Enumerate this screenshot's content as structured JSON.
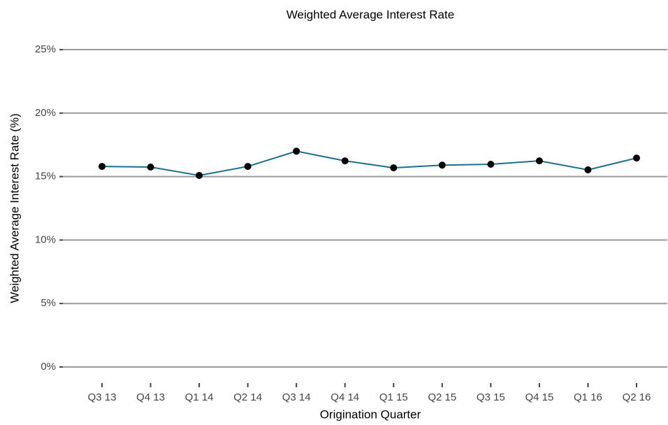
{
  "chart_data": {
    "type": "line",
    "title": "Weighted Average Interest Rate",
    "x_label": "Origination Quarter",
    "y_label": "Weighted Average Interest Rate (%)",
    "categories": [
      "Q3 13",
      "Q4 13",
      "Q1 14",
      "Q2 14",
      "Q3 14",
      "Q4 14",
      "Q1 15",
      "Q2 15",
      "Q3 15",
      "Q4 15",
      "Q1 16",
      "Q2 16"
    ],
    "series": [
      {
        "name": "Weighted Average Interest Rate",
        "color": "#1b6f8c",
        "marker_color": "#000000",
        "values": [
          15.8,
          15.75,
          15.09,
          15.8,
          17.0,
          16.24,
          15.69,
          15.9,
          15.97,
          16.24,
          15.53,
          16.46
        ]
      }
    ],
    "ylim": [
      0,
      25
    ],
    "yticks": [
      {
        "value": 0,
        "label": "0%"
      },
      {
        "value": 5,
        "label": "5%"
      },
      {
        "value": 10,
        "label": "10%"
      },
      {
        "value": 15,
        "label": "15%"
      },
      {
        "value": 20,
        "label": "20%"
      },
      {
        "value": 25,
        "label": "25%"
      }
    ],
    "grid": true
  }
}
